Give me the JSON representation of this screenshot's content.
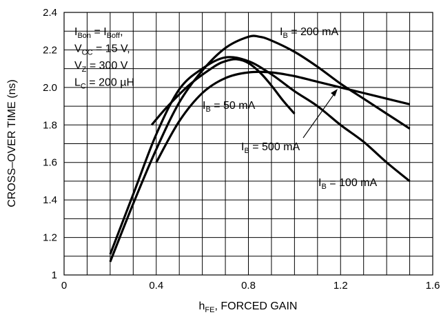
{
  "chart_data": {
    "type": "line",
    "xlabel": {
      "main": "h",
      "sub": "FE",
      "rest": ", FORCED GAIN"
    },
    "ylabel": "CROSS–OVER TIME (ns)",
    "xlim": [
      0,
      1.6
    ],
    "ylim": [
      1.0,
      2.4
    ],
    "x_ticks": [
      0,
      0.4,
      0.8,
      1.2,
      1.6
    ],
    "x_tick_labels": [
      "0",
      "0.4",
      "0.8",
      "1.2",
      "1.6"
    ],
    "y_ticks": [
      1.0,
      1.2,
      1.4,
      1.6,
      1.8,
      2.0,
      2.2,
      2.4
    ],
    "y_tick_labels": [
      "1",
      "1.2",
      "1.4",
      "1.6",
      "1.8",
      "2.0",
      "2.2",
      "2.4"
    ],
    "grid": true,
    "conditions": [
      {
        "parts": [
          [
            "I",
            ""
          ],
          [
            "Bon",
            "sub"
          ],
          [
            " = I",
            ""
          ],
          [
            "Boff",
            "sub"
          ],
          [
            ",",
            ""
          ]
        ]
      },
      {
        "parts": [
          [
            "V",
            ""
          ],
          [
            "CC",
            "sub"
          ],
          [
            " = 15 V,",
            ""
          ]
        ]
      },
      {
        "parts": [
          [
            "V",
            ""
          ],
          [
            "Z",
            "sub"
          ],
          [
            " = 300 V",
            ""
          ]
        ]
      },
      {
        "parts": [
          [
            "L",
            ""
          ],
          [
            "C",
            "sub"
          ],
          [
            " = 200 µH",
            ""
          ]
        ]
      }
    ],
    "series": [
      {
        "name": "IB = 200 mA",
        "label_parts": [
          [
            "I",
            ""
          ],
          [
            "B",
            "sub"
          ],
          [
            " = 200 mA",
            ""
          ]
        ],
        "x": [
          0.2,
          0.3,
          0.4,
          0.5,
          0.6,
          0.7,
          0.8,
          0.85,
          0.9,
          1.0,
          1.1,
          1.2,
          1.3,
          1.4,
          1.5
        ],
        "y": [
          1.07,
          1.38,
          1.67,
          1.92,
          2.09,
          2.21,
          2.27,
          2.27,
          2.25,
          2.19,
          2.11,
          2.02,
          1.94,
          1.86,
          1.78
        ]
      },
      {
        "name": "IB = 50 mA",
        "label_parts": [
          [
            "I",
            ""
          ],
          [
            "B",
            "sub"
          ],
          [
            " = 50 mA",
            ""
          ]
        ],
        "x": [
          0.38,
          0.45,
          0.55,
          0.65,
          0.7,
          0.75,
          0.8,
          0.85,
          0.9,
          0.95,
          1.0
        ],
        "y": [
          1.8,
          1.9,
          2.02,
          2.11,
          2.14,
          2.15,
          2.13,
          2.08,
          2.01,
          1.93,
          1.86
        ]
      },
      {
        "name": "IB = 500 mA",
        "label_parts": [
          [
            "I",
            ""
          ],
          [
            "B",
            "sub"
          ],
          [
            " = 500 mA",
            ""
          ]
        ],
        "x": [
          0.4,
          0.5,
          0.6,
          0.7,
          0.8,
          0.9,
          1.0,
          1.1,
          1.2,
          1.3,
          1.4,
          1.5
        ],
        "y": [
          1.6,
          1.82,
          1.97,
          2.05,
          2.08,
          2.08,
          2.06,
          2.03,
          2.0,
          1.97,
          1.94,
          1.91
        ]
      },
      {
        "name": "IB = 100 mA",
        "label_parts": [
          [
            "I",
            ""
          ],
          [
            "B",
            "sub"
          ],
          [
            " = 100 mA",
            ""
          ]
        ],
        "x": [
          0.2,
          0.3,
          0.4,
          0.5,
          0.6,
          0.7,
          0.8,
          0.9,
          1.0,
          1.1,
          1.2,
          1.3,
          1.4,
          1.5
        ],
        "y": [
          1.11,
          1.43,
          1.75,
          1.99,
          2.1,
          2.16,
          2.14,
          2.07,
          1.98,
          1.9,
          1.8,
          1.71,
          1.6,
          1.5
        ]
      }
    ]
  }
}
